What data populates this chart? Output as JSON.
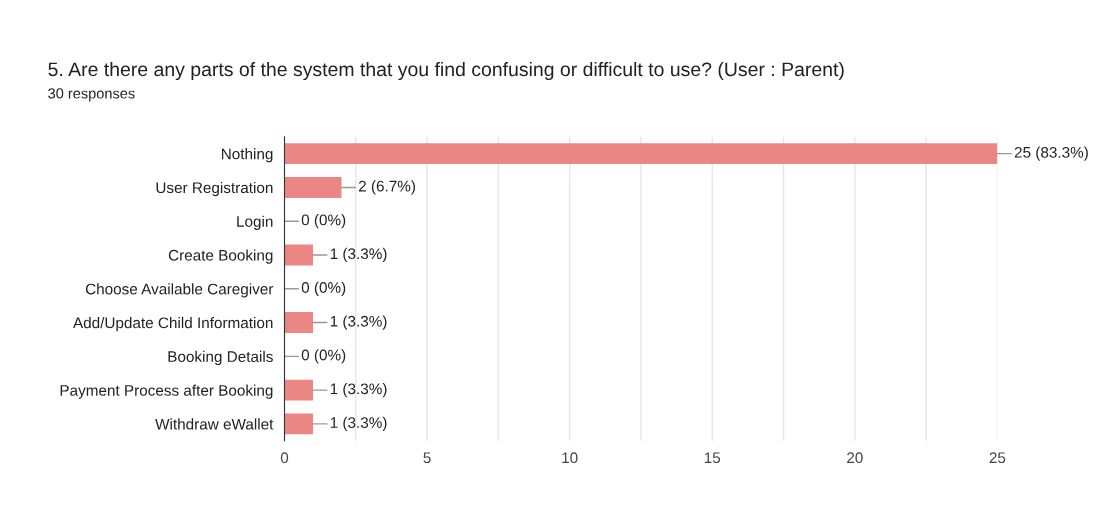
{
  "chart_data": {
    "type": "bar",
    "orientation": "horizontal",
    "title": "5. Are there any parts of the system that you find confusing or difficult to use? (User : Parent)",
    "subtitle": "30 responses",
    "categories": [
      "Nothing",
      "User Registration",
      "Login",
      "Create Booking",
      "Choose Available Caregiver",
      "Add/Update Child Information",
      "Booking Details",
      "Payment Process after Booking",
      "Withdraw eWallet"
    ],
    "values": [
      25,
      2,
      0,
      1,
      0,
      1,
      0,
      1,
      1
    ],
    "value_labels": [
      "25 (83.3%)",
      "2 (6.7%)",
      "0 (0%)",
      "1 (3.3%)",
      "0 (0%)",
      "1 (3.3%)",
      "0 (0%)",
      "1 (3.3%)",
      "1 (3.3%)"
    ],
    "color": "#ea8784",
    "xlim": [
      0,
      25
    ],
    "xticks": [
      0,
      {
        "value": 2.5,
        "label": null
      },
      5,
      {
        "value": 7.5,
        "label": null
      },
      10,
      {
        "value": 12.5,
        "label": null
      },
      15,
      {
        "value": 17.5,
        "label": null
      },
      20,
      {
        "value": 22.5,
        "label": null
      },
      25
    ],
    "grid": "x",
    "legend": false
  }
}
